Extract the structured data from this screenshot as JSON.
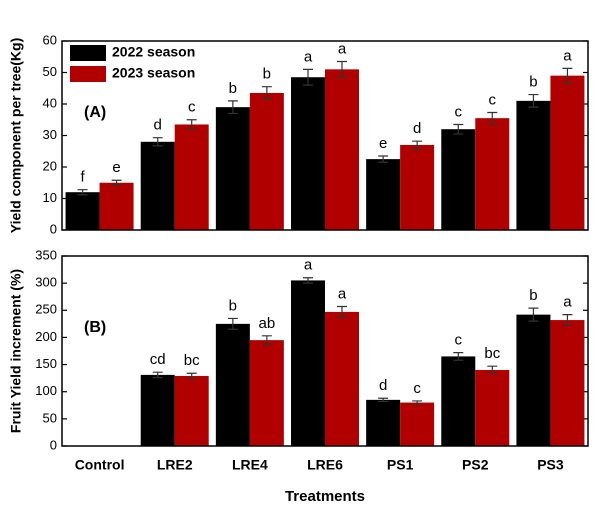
{
  "chart_data": [
    {
      "type": "bar",
      "panel_label": "(A)",
      "y_label": "Yield component per tree(Kg)",
      "ylim": [
        0,
        60
      ],
      "yticks": [
        0,
        10,
        20,
        30,
        40,
        50,
        60
      ],
      "legend": "top-left",
      "series": [
        {
          "name": "2022 season",
          "color": "#000000",
          "values": [
            12,
            28,
            39,
            48.5,
            22.5,
            32,
            41
          ],
          "errors": [
            0.8,
            1.3,
            2,
            2.5,
            1,
            1.5,
            2
          ],
          "letters": [
            "f",
            "d",
            "b",
            "a",
            "e",
            "c",
            "b"
          ]
        },
        {
          "name": "2023 season",
          "color": "#b00000",
          "values": [
            15,
            33.5,
            43.5,
            51,
            27,
            35.5,
            49
          ],
          "errors": [
            0.8,
            1.5,
            2,
            2.5,
            1.2,
            1.8,
            2.3
          ],
          "letters": [
            "e",
            "c",
            "b",
            "a",
            "d",
            "c",
            "a"
          ]
        }
      ]
    },
    {
      "type": "bar",
      "panel_label": "(B)",
      "y_label": "Fruit Yield increment (%)",
      "x_label": "Treatments",
      "categories": [
        "Control",
        "LRE2",
        "LRE4",
        "LRE6",
        "PS1",
        "PS2",
        "PS3"
      ],
      "ylim": [
        0,
        350
      ],
      "yticks": [
        0,
        50,
        100,
        150,
        200,
        250,
        300,
        350
      ],
      "series": [
        {
          "color": "#000000",
          "values": [
            null,
            131,
            225,
            305,
            85,
            165,
            242
          ],
          "errors": [
            null,
            5,
            10,
            5,
            3,
            7,
            12
          ],
          "letters": [
            null,
            "cd",
            "b",
            "a",
            "d",
            "c",
            "b"
          ]
        },
        {
          "color": "#b00000",
          "values": [
            null,
            129,
            195,
            247,
            80,
            140,
            232
          ],
          "errors": [
            null,
            5,
            8,
            10,
            3,
            7,
            10
          ],
          "letters": [
            null,
            "bc",
            "ab",
            "a",
            "c",
            "bc",
            "a"
          ]
        }
      ]
    }
  ]
}
